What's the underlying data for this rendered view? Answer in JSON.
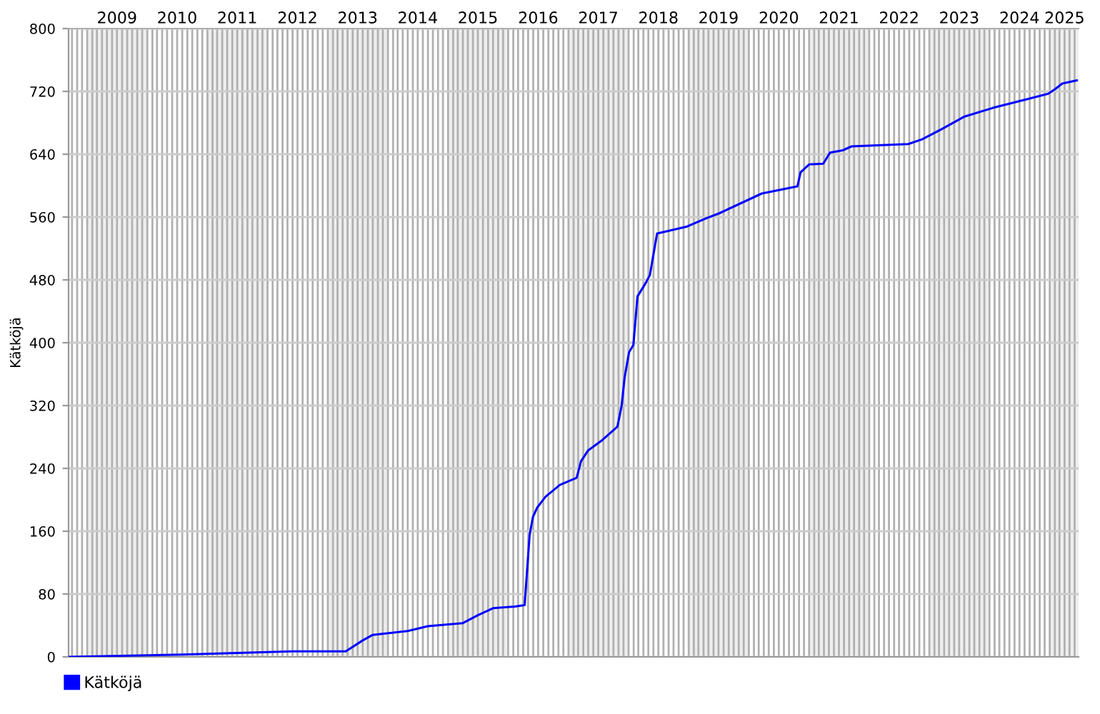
{
  "chart_data": {
    "type": "line",
    "ylabel": "Kätköjä",
    "x": [
      "2008-09-10",
      "2010-08-01",
      "2011-07-01",
      "2012-06-01",
      "2013-04-20",
      "2013-08-01",
      "2013-10-01",
      "2014-05-01",
      "2014-09-01",
      "2015-04-01",
      "2015-07-01",
      "2015-10-01",
      "2016-02-10",
      "2016-04-10",
      "2016-05-10",
      "2016-05-30",
      "2016-06-25",
      "2016-08-15",
      "2016-11-10",
      "2017-02-20",
      "2017-03-18",
      "2017-05-01",
      "2017-07-25",
      "2017-10-25",
      "2017-11-20",
      "2017-12-08",
      "2018-01-04",
      "2018-01-30",
      "2018-02-24",
      "2018-04-15",
      "2018-05-10",
      "2018-06-23",
      "2018-08-24",
      "2018-12-23",
      "2019-04-13",
      "2019-07-08",
      "2020-03-20",
      "2020-10-22",
      "2020-11-10",
      "2021-01-01",
      "2021-03-28",
      "2021-05-08",
      "2021-07-24",
      "2021-09-16",
      "2022-08-26",
      "2022-11-18",
      "2023-03-17",
      "2023-08-03",
      "2024-01-22",
      "2024-08-15",
      "2024-12-23",
      "2025-02-03",
      "2025-03-18",
      "2025-06-14"
    ],
    "series": [
      {
        "name": "Kätköjä",
        "color": "#0000ff",
        "values": [
          0,
          3,
          5,
          7,
          7,
          21,
          28,
          33,
          39,
          43,
          53,
          62,
          64,
          66,
          155,
          178,
          190,
          204,
          219,
          228,
          249,
          263,
          276,
          293,
          320,
          356,
          388,
          397,
          459,
          476,
          486,
          539,
          542,
          548,
          558,
          565,
          590,
          599,
          617,
          627,
          628,
          642,
          645,
          650,
          653,
          659,
          672,
          688,
          699,
          710,
          717,
          723,
          730,
          734
        ]
      }
    ],
    "xlim": [
      "2008-09-10",
      "2025-06-25"
    ],
    "ylim": [
      0,
      800
    ],
    "yticks": [
      0,
      80,
      160,
      240,
      320,
      400,
      480,
      560,
      640,
      720,
      800
    ],
    "xticks": [
      {
        "value": "2008-10",
        "label": null
      },
      {
        "value": "2008-11",
        "label": null
      },
      {
        "value": "2008-12",
        "label": null
      },
      {
        "value": "2009-01",
        "label": null
      },
      {
        "value": "2009-02",
        "label": null
      },
      {
        "value": "2009-03",
        "label": null
      },
      {
        "value": "2009-04",
        "label": null
      },
      {
        "value": "2009-05",
        "label": null
      },
      {
        "value": "2009-06",
        "label": null
      },
      {
        "value": "2009-07",
        "label": "2009"
      },
      {
        "value": "2009-08",
        "label": null
      },
      {
        "value": "2009-09",
        "label": null
      },
      {
        "value": "2009-10",
        "label": null
      },
      {
        "value": "2009-11",
        "label": null
      },
      {
        "value": "2009-12",
        "label": null
      },
      {
        "value": "2010-01",
        "label": null
      },
      {
        "value": "2010-02",
        "label": null
      },
      {
        "value": "2010-03",
        "label": null
      },
      {
        "value": "2010-04",
        "label": null
      },
      {
        "value": "2010-05",
        "label": null
      },
      {
        "value": "2010-06",
        "label": null
      },
      {
        "value": "2010-07",
        "label": "2010"
      },
      {
        "value": "2010-08",
        "label": null
      },
      {
        "value": "2010-09",
        "label": null
      },
      {
        "value": "2010-10",
        "label": null
      },
      {
        "value": "2010-11",
        "label": null
      },
      {
        "value": "2010-12",
        "label": null
      },
      {
        "value": "2011-01",
        "label": null
      },
      {
        "value": "2011-02",
        "label": null
      },
      {
        "value": "2011-03",
        "label": null
      },
      {
        "value": "2011-04",
        "label": null
      },
      {
        "value": "2011-05",
        "label": null
      },
      {
        "value": "2011-06",
        "label": null
      },
      {
        "value": "2011-07",
        "label": "2011"
      },
      {
        "value": "2011-08",
        "label": null
      },
      {
        "value": "2011-09",
        "label": null
      },
      {
        "value": "2011-10",
        "label": null
      },
      {
        "value": "2011-11",
        "label": null
      },
      {
        "value": "2011-12",
        "label": null
      },
      {
        "value": "2012-01",
        "label": null
      },
      {
        "value": "2012-02",
        "label": null
      },
      {
        "value": "2012-03",
        "label": null
      },
      {
        "value": "2012-04",
        "label": null
      },
      {
        "value": "2012-05",
        "label": null
      },
      {
        "value": "2012-06",
        "label": null
      },
      {
        "value": "2012-07",
        "label": "2012"
      },
      {
        "value": "2012-08",
        "label": null
      },
      {
        "value": "2012-09",
        "label": null
      },
      {
        "value": "2012-10",
        "label": null
      },
      {
        "value": "2012-11",
        "label": null
      },
      {
        "value": "2012-12",
        "label": null
      },
      {
        "value": "2013-01",
        "label": null
      },
      {
        "value": "2013-02",
        "label": null
      },
      {
        "value": "2013-03",
        "label": null
      },
      {
        "value": "2013-04",
        "label": null
      },
      {
        "value": "2013-05",
        "label": null
      },
      {
        "value": "2013-06",
        "label": null
      },
      {
        "value": "2013-07",
        "label": "2013"
      },
      {
        "value": "2013-08",
        "label": null
      },
      {
        "value": "2013-09",
        "label": null
      },
      {
        "value": "2013-10",
        "label": null
      },
      {
        "value": "2013-11",
        "label": null
      },
      {
        "value": "2013-12",
        "label": null
      },
      {
        "value": "2014-01",
        "label": null
      },
      {
        "value": "2014-02",
        "label": null
      },
      {
        "value": "2014-03",
        "label": null
      },
      {
        "value": "2014-04",
        "label": null
      },
      {
        "value": "2014-05",
        "label": null
      },
      {
        "value": "2014-06",
        "label": null
      },
      {
        "value": "2014-07",
        "label": "2014"
      },
      {
        "value": "2014-08",
        "label": null
      },
      {
        "value": "2014-09",
        "label": null
      },
      {
        "value": "2014-10",
        "label": null
      },
      {
        "value": "2014-11",
        "label": null
      },
      {
        "value": "2014-12",
        "label": null
      },
      {
        "value": "2015-01",
        "label": null
      },
      {
        "value": "2015-02",
        "label": null
      },
      {
        "value": "2015-03",
        "label": null
      },
      {
        "value": "2015-04",
        "label": null
      },
      {
        "value": "2015-05",
        "label": null
      },
      {
        "value": "2015-06",
        "label": null
      },
      {
        "value": "2015-07",
        "label": "2015"
      },
      {
        "value": "2015-08",
        "label": null
      },
      {
        "value": "2015-09",
        "label": null
      },
      {
        "value": "2015-10",
        "label": null
      },
      {
        "value": "2015-11",
        "label": null
      },
      {
        "value": "2015-12",
        "label": null
      },
      {
        "value": "2016-01",
        "label": null
      },
      {
        "value": "2016-02",
        "label": null
      },
      {
        "value": "2016-03",
        "label": null
      },
      {
        "value": "2016-04",
        "label": null
      },
      {
        "value": "2016-05",
        "label": null
      },
      {
        "value": "2016-06",
        "label": null
      },
      {
        "value": "2016-07",
        "label": "2016"
      },
      {
        "value": "2016-08",
        "label": null
      },
      {
        "value": "2016-09",
        "label": null
      },
      {
        "value": "2016-10",
        "label": null
      },
      {
        "value": "2016-11",
        "label": null
      },
      {
        "value": "2016-12",
        "label": null
      },
      {
        "value": "2017-01",
        "label": null
      },
      {
        "value": "2017-02",
        "label": null
      },
      {
        "value": "2017-03",
        "label": null
      },
      {
        "value": "2017-04",
        "label": null
      },
      {
        "value": "2017-05",
        "label": null
      },
      {
        "value": "2017-06",
        "label": null
      },
      {
        "value": "2017-07",
        "label": "2017"
      },
      {
        "value": "2017-08",
        "label": null
      },
      {
        "value": "2017-09",
        "label": null
      },
      {
        "value": "2017-10",
        "label": null
      },
      {
        "value": "2017-11",
        "label": null
      },
      {
        "value": "2017-12",
        "label": null
      },
      {
        "value": "2018-01",
        "label": null
      },
      {
        "value": "2018-02",
        "label": null
      },
      {
        "value": "2018-03",
        "label": null
      },
      {
        "value": "2018-04",
        "label": null
      },
      {
        "value": "2018-05",
        "label": null
      },
      {
        "value": "2018-06",
        "label": null
      },
      {
        "value": "2018-07",
        "label": "2018"
      },
      {
        "value": "2018-08",
        "label": null
      },
      {
        "value": "2018-09",
        "label": null
      },
      {
        "value": "2018-10",
        "label": null
      },
      {
        "value": "2018-11",
        "label": null
      },
      {
        "value": "2018-12",
        "label": null
      },
      {
        "value": "2019-01",
        "label": null
      },
      {
        "value": "2019-02",
        "label": null
      },
      {
        "value": "2019-03",
        "label": null
      },
      {
        "value": "2019-04",
        "label": null
      },
      {
        "value": "2019-05",
        "label": null
      },
      {
        "value": "2019-06",
        "label": null
      },
      {
        "value": "2019-07",
        "label": "2019"
      },
      {
        "value": "2019-08",
        "label": null
      },
      {
        "value": "2019-09",
        "label": null
      },
      {
        "value": "2019-10",
        "label": null
      },
      {
        "value": "2019-11",
        "label": null
      },
      {
        "value": "2019-12",
        "label": null
      },
      {
        "value": "2020-01",
        "label": null
      },
      {
        "value": "2020-02",
        "label": null
      },
      {
        "value": "2020-03",
        "label": null
      },
      {
        "value": "2020-04",
        "label": null
      },
      {
        "value": "2020-05",
        "label": null
      },
      {
        "value": "2020-06",
        "label": null
      },
      {
        "value": "2020-07",
        "label": "2020"
      },
      {
        "value": "2020-08",
        "label": null
      },
      {
        "value": "2020-09",
        "label": null
      },
      {
        "value": "2020-10",
        "label": null
      },
      {
        "value": "2020-11",
        "label": null
      },
      {
        "value": "2020-12",
        "label": null
      },
      {
        "value": "2021-01",
        "label": null
      },
      {
        "value": "2021-02",
        "label": null
      },
      {
        "value": "2021-03",
        "label": null
      },
      {
        "value": "2021-04",
        "label": null
      },
      {
        "value": "2021-05",
        "label": null
      },
      {
        "value": "2021-06",
        "label": null
      },
      {
        "value": "2021-07",
        "label": "2021"
      },
      {
        "value": "2021-08",
        "label": null
      },
      {
        "value": "2021-09",
        "label": null
      },
      {
        "value": "2021-10",
        "label": null
      },
      {
        "value": "2021-11",
        "label": null
      },
      {
        "value": "2021-12",
        "label": null
      },
      {
        "value": "2022-01",
        "label": null
      },
      {
        "value": "2022-02",
        "label": null
      },
      {
        "value": "2022-03",
        "label": null
      },
      {
        "value": "2022-04",
        "label": null
      },
      {
        "value": "2022-05",
        "label": null
      },
      {
        "value": "2022-06",
        "label": null
      },
      {
        "value": "2022-07",
        "label": "2022"
      },
      {
        "value": "2022-08",
        "label": null
      },
      {
        "value": "2022-09",
        "label": null
      },
      {
        "value": "2022-10",
        "label": null
      },
      {
        "value": "2022-11",
        "label": null
      },
      {
        "value": "2022-12",
        "label": null
      },
      {
        "value": "2023-01",
        "label": null
      },
      {
        "value": "2023-02",
        "label": null
      },
      {
        "value": "2023-03",
        "label": null
      },
      {
        "value": "2023-04",
        "label": null
      },
      {
        "value": "2023-05",
        "label": null
      },
      {
        "value": "2023-06",
        "label": null
      },
      {
        "value": "2023-07",
        "label": "2023"
      },
      {
        "value": "2023-08",
        "label": null
      },
      {
        "value": "2023-09",
        "label": null
      },
      {
        "value": "2023-10",
        "label": null
      },
      {
        "value": "2023-11",
        "label": null
      },
      {
        "value": "2023-12",
        "label": null
      },
      {
        "value": "2024-01",
        "label": null
      },
      {
        "value": "2024-02",
        "label": null
      },
      {
        "value": "2024-03",
        "label": null
      },
      {
        "value": "2024-04",
        "label": null
      },
      {
        "value": "2024-05",
        "label": null
      },
      {
        "value": "2024-06",
        "label": null
      },
      {
        "value": "2024-07",
        "label": "2024"
      },
      {
        "value": "2024-08",
        "label": null
      },
      {
        "value": "2024-09",
        "label": null
      },
      {
        "value": "2024-10",
        "label": null
      },
      {
        "value": "2024-11",
        "label": null
      },
      {
        "value": "2024-12",
        "label": null
      },
      {
        "value": "2025-01",
        "label": null
      },
      {
        "value": "2025-02",
        "label": null
      },
      {
        "value": "2025-03",
        "label": null
      },
      {
        "value": "2025-04",
        "label": "2025"
      },
      {
        "value": "2025-05",
        "label": null
      },
      {
        "value": "2025-06",
        "label": null
      }
    ],
    "bands": [
      {
        "axis": "x",
        "from": "2009-01",
        "to": "2010-01",
        "color": "#eeeeee"
      },
      {
        "axis": "x",
        "from": "2011-01",
        "to": "2012-01",
        "color": "#eeeeee"
      },
      {
        "axis": "x",
        "from": "2013-01",
        "to": "2014-01",
        "color": "#eeeeee"
      },
      {
        "axis": "x",
        "from": "2015-01",
        "to": "2016-01",
        "color": "#eeeeee"
      },
      {
        "axis": "x",
        "from": "2017-01",
        "to": "2018-01",
        "color": "#eeeeee"
      },
      {
        "axis": "x",
        "from": "2019-01",
        "to": "2020-01",
        "color": "#eeeeee"
      },
      {
        "axis": "x",
        "from": "2021-01",
        "to": "2022-01",
        "color": "#eeeeee"
      },
      {
        "axis": "x",
        "from": "2023-01",
        "to": "2024-01",
        "color": "#eeeeee"
      },
      {
        "axis": "x",
        "from": "2025-01",
        "to": "2025-06-25",
        "color": "#eeeeee"
      }
    ],
    "grid": true,
    "legend": "bottom left",
    "marker": "none",
    "line_style": "solid"
  }
}
